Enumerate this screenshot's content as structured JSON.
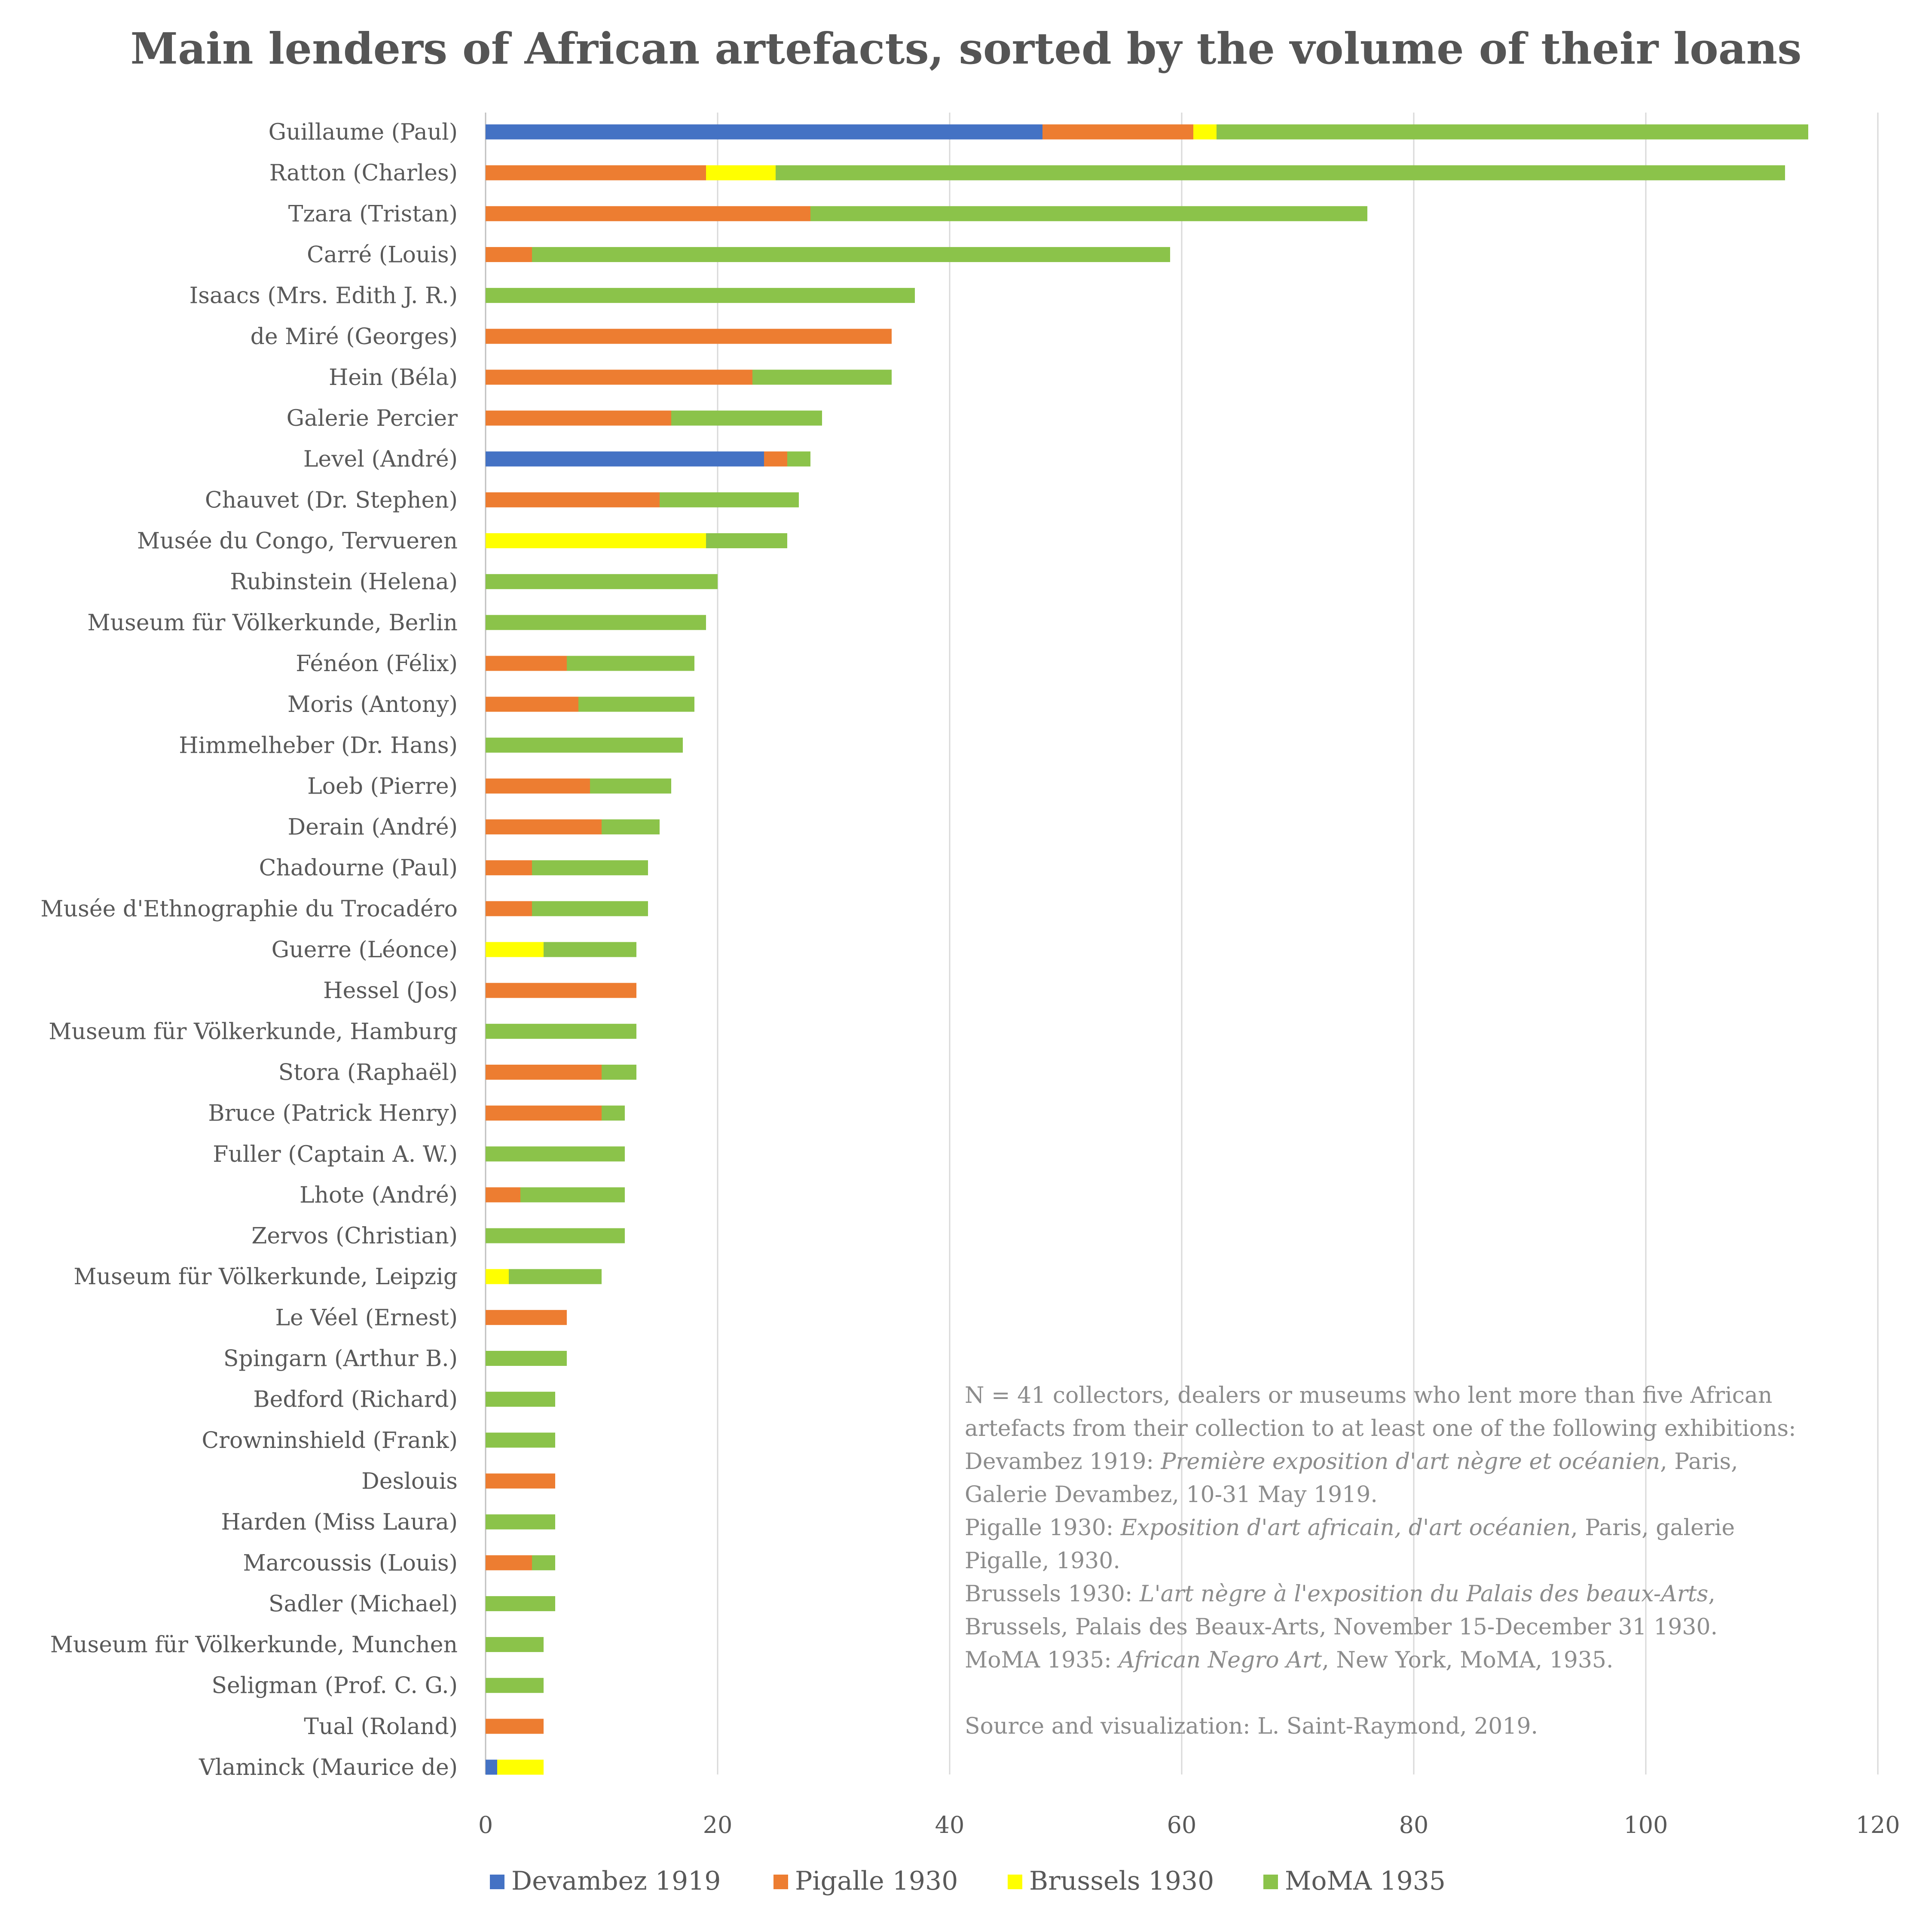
{
  "chart_data": {
    "type": "bar",
    "orientation": "horizontal",
    "stacked": true,
    "title": "Main lenders of African artefacts, sorted by the volume of their loans",
    "xlabel": "",
    "ylabel": "",
    "xlim": [
      0,
      120
    ],
    "x_ticks": [
      "0",
      "20",
      "40",
      "60",
      "80",
      "100",
      "120"
    ],
    "grid": "vertical gridlines",
    "legend_position": "bottom",
    "categories": [
      "Guillaume (Paul)",
      "Ratton (Charles)",
      "Tzara (Tristan)",
      "Carré (Louis)",
      "Isaacs (Mrs. Edith J. R.)",
      "de Miré (Georges)",
      "Hein (Béla)",
      "Galerie Percier",
      "Level (André)",
      "Chauvet (Dr. Stephen)",
      "Musée du Congo, Tervueren",
      "Rubinstein (Helena)",
      "Museum für Völkerkunde, Berlin",
      "Fénéon (Félix)",
      "Moris (Antony)",
      "Himmelheber (Dr. Hans)",
      "Loeb (Pierre)",
      "Derain (André)",
      "Chadourne (Paul)",
      "Musée d'Ethnographie du Trocadéro",
      "Guerre (Léonce)",
      "Hessel (Jos)",
      "Museum für Völkerkunde, Hamburg",
      "Stora (Raphaël)",
      "Bruce (Patrick Henry)",
      "Fuller (Captain A. W.)",
      "Lhote (André)",
      "Zervos (Christian)",
      "Museum für Völkerkunde, Leipzig",
      "Le Véel (Ernest)",
      "Spingarn (Arthur B.)",
      "Bedford (Richard)",
      "Crowninshield (Frank)",
      "Deslouis",
      "Harden (Miss Laura)",
      "Marcoussis (Louis)",
      "Sadler (Michael)",
      "Museum für Völkerkunde, Munchen",
      "Seligman (Prof. C. G.)",
      "Tual (Roland)",
      "Vlaminck (Maurice de)"
    ],
    "series": [
      {
        "name": "Devambez 1919",
        "color": "#4472C4",
        "values": [
          48,
          0,
          0,
          0,
          0,
          0,
          0,
          0,
          24,
          0,
          0,
          0,
          0,
          0,
          0,
          0,
          0,
          0,
          0,
          0,
          0,
          0,
          0,
          0,
          0,
          0,
          0,
          0,
          0,
          0,
          0,
          0,
          0,
          0,
          0,
          0,
          0,
          0,
          0,
          0,
          1
        ]
      },
      {
        "name": "Pigalle 1930",
        "color": "#ED7D31",
        "values": [
          13,
          19,
          28,
          4,
          0,
          35,
          23,
          16,
          2,
          15,
          0,
          0,
          0,
          7,
          8,
          0,
          9,
          10,
          4,
          4,
          0,
          13,
          0,
          10,
          10,
          0,
          3,
          0,
          0,
          7,
          0,
          0,
          0,
          6,
          0,
          4,
          0,
          0,
          0,
          5,
          0
        ]
      },
      {
        "name": "Brussels 1930",
        "color": "#FFFF00",
        "values": [
          2,
          6,
          0,
          0,
          0,
          0,
          0,
          0,
          0,
          0,
          19,
          0,
          0,
          0,
          0,
          0,
          0,
          0,
          0,
          0,
          5,
          0,
          0,
          0,
          0,
          0,
          0,
          0,
          2,
          0,
          0,
          0,
          0,
          0,
          0,
          0,
          0,
          0,
          0,
          0,
          4
        ]
      },
      {
        "name": "MoMA 1935",
        "color": "#8BC34A",
        "values": [
          51,
          87,
          48,
          55,
          37,
          0,
          12,
          13,
          2,
          12,
          7,
          20,
          19,
          11,
          10,
          17,
          7,
          5,
          10,
          10,
          8,
          0,
          13,
          3,
          2,
          12,
          9,
          12,
          8,
          0,
          7,
          6,
          6,
          0,
          6,
          2,
          6,
          5,
          5,
          0,
          0
        ]
      }
    ],
    "note": [
      [
        {
          "t": "N = 41 collectors, dealers or museums who lent more than five African",
          "i": false
        }
      ],
      [
        {
          "t": "artefacts from their collection to at least one of the following exhibitions:",
          "i": false
        }
      ],
      [
        {
          "t": "Devambez 1919: ",
          "i": false
        },
        {
          "t": "Première exposition d'art nègre et océanien",
          "i": true
        },
        {
          "t": ", Paris,",
          "i": false
        }
      ],
      [
        {
          "t": "Galerie Devambez, 10-31 May 1919.",
          "i": false
        }
      ],
      [
        {
          "t": "Pigalle 1930: ",
          "i": false
        },
        {
          "t": "Exposition d'art africain, d'art océanien",
          "i": true
        },
        {
          "t": ", Paris, galerie",
          "i": false
        }
      ],
      [
        {
          "t": "Pigalle, 1930.",
          "i": false
        }
      ],
      [
        {
          "t": "Brussels 1930: ",
          "i": false
        },
        {
          "t": "L'art nègre à l'exposition du Palais des beaux-Arts",
          "i": true
        },
        {
          "t": ",",
          "i": false
        }
      ],
      [
        {
          "t": "Brussels, Palais des Beaux-Arts, November 15-December 31 1930.",
          "i": false
        }
      ],
      [
        {
          "t": "MoMA 1935: ",
          "i": false
        },
        {
          "t": "African Negro Art",
          "i": true
        },
        {
          "t": ", New York, MoMA, 1935.",
          "i": false
        }
      ],
      [],
      [
        {
          "t": "Source and visualization: L. Saint-Raymond, 2019.",
          "i": false
        }
      ]
    ]
  }
}
